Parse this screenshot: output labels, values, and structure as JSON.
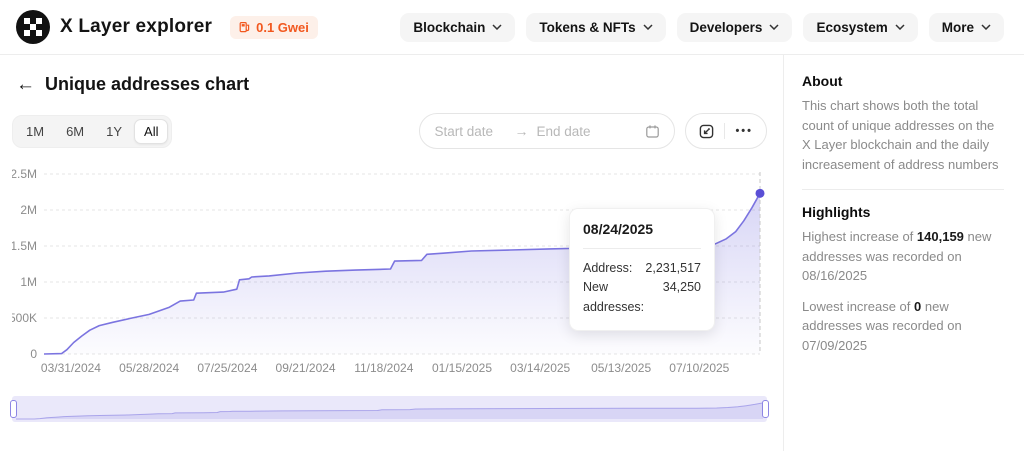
{
  "header": {
    "title": "X Layer explorer",
    "gas_badge": {
      "label": "0.1 Gwei"
    },
    "nav": {
      "items": [
        {
          "label": "Blockchain"
        },
        {
          "label": "Tokens & NFTs"
        },
        {
          "label": "Developers"
        },
        {
          "label": "Ecosystem"
        },
        {
          "label": "More"
        }
      ]
    }
  },
  "page": {
    "back_arrow": "←",
    "title": "Unique addresses chart"
  },
  "controls": {
    "ranges": [
      {
        "label": "1M"
      },
      {
        "label": "6M"
      },
      {
        "label": "1Y"
      },
      {
        "label": "All"
      }
    ],
    "date_range": {
      "start_placeholder": "Start date",
      "arrow": "→",
      "end_placeholder": "End date"
    },
    "more_label": "•••"
  },
  "tooltip": {
    "date": "08/24/2025",
    "rows": [
      {
        "label": "Address:",
        "value": "2,231,517"
      },
      {
        "label": "New addresses:",
        "value": "34,250"
      }
    ]
  },
  "chart_data": {
    "type": "area",
    "title": "Unique addresses chart",
    "xlabel": "",
    "ylabel": "",
    "grid": "dashed-horizontal",
    "legend": false,
    "x_domain": [
      "2024-03-11",
      "2025-08-24"
    ],
    "y_domain": [
      0,
      2500000
    ],
    "y_ticks": [
      {
        "value": 0,
        "label": "0"
      },
      {
        "value": 500000,
        "label": "500K"
      },
      {
        "value": 1000000,
        "label": "1M"
      },
      {
        "value": 1500000,
        "label": "1.5M"
      },
      {
        "value": 2000000,
        "label": "2M"
      },
      {
        "value": 2500000,
        "label": "2.5M"
      }
    ],
    "x_ticks": [
      {
        "date": "2024-03-31",
        "label": "03/31/2024"
      },
      {
        "date": "2024-05-28",
        "label": "05/28/2024"
      },
      {
        "date": "2024-07-25",
        "label": "07/25/2024"
      },
      {
        "date": "2024-09-21",
        "label": "09/21/2024"
      },
      {
        "date": "2024-11-18",
        "label": "11/18/2024"
      },
      {
        "date": "2025-01-15",
        "label": "01/15/2025"
      },
      {
        "date": "2025-03-14",
        "label": "03/14/2025"
      },
      {
        "date": "2025-05-13",
        "label": "05/13/2025"
      },
      {
        "date": "2025-07-10",
        "label": "07/10/2025"
      }
    ],
    "series": [
      {
        "name": "Address",
        "points": [
          [
            "2024-03-11",
            0
          ],
          [
            "2024-03-24",
            5000
          ],
          [
            "2024-03-28",
            60000
          ],
          [
            "2024-04-02",
            160000
          ],
          [
            "2024-04-08",
            250000
          ],
          [
            "2024-04-14",
            330000
          ],
          [
            "2024-04-21",
            395000
          ],
          [
            "2024-05-01",
            440000
          ],
          [
            "2024-05-14",
            495000
          ],
          [
            "2024-05-28",
            550000
          ],
          [
            "2024-06-12",
            650000
          ],
          [
            "2024-06-20",
            735000
          ],
          [
            "2024-06-30",
            750000
          ],
          [
            "2024-07-02",
            845000
          ],
          [
            "2024-07-22",
            860000
          ],
          [
            "2024-08-01",
            900000
          ],
          [
            "2024-08-03",
            1030000
          ],
          [
            "2024-08-10",
            1045000
          ],
          [
            "2024-08-12",
            1070000
          ],
          [
            "2024-08-25",
            1085000
          ],
          [
            "2024-09-15",
            1125000
          ],
          [
            "2024-10-06",
            1150000
          ],
          [
            "2024-10-28",
            1165000
          ],
          [
            "2024-11-23",
            1180000
          ],
          [
            "2024-11-26",
            1290000
          ],
          [
            "2024-12-16",
            1300000
          ],
          [
            "2024-12-20",
            1385000
          ],
          [
            "2025-01-01",
            1400000
          ],
          [
            "2025-01-22",
            1430000
          ],
          [
            "2025-02-20",
            1445000
          ],
          [
            "2025-03-21",
            1460000
          ],
          [
            "2025-04-19",
            1472000
          ],
          [
            "2025-05-18",
            1486000
          ],
          [
            "2025-06-16",
            1498000
          ],
          [
            "2025-07-08",
            1505000
          ],
          [
            "2025-07-22",
            1530000
          ],
          [
            "2025-07-30",
            1600000
          ],
          [
            "2025-08-06",
            1700000
          ],
          [
            "2025-08-12",
            1850000
          ],
          [
            "2025-08-18",
            2030000
          ],
          [
            "2025-08-24",
            2231517
          ]
        ]
      }
    ],
    "hover_point": {
      "date": "2025-08-24",
      "value": 2231517,
      "new_addresses": 34250
    }
  },
  "sidebar": {
    "about": {
      "title": "About",
      "body": "This chart shows both the total count of unique addresses on the X Layer blockchain and the daily increasement of address numbers"
    },
    "highlights": {
      "title": "Highlights",
      "items": [
        {
          "prefix": "Highest increase of ",
          "value": "140,159",
          "suffix": " new addresses was recorded on 08/16/2025"
        },
        {
          "prefix": "Lowest increase of ",
          "value": "0",
          "suffix": " new addresses was recorded on 07/09/2025"
        }
      ]
    }
  },
  "colors": {
    "accent": "#7b74e0",
    "dot": "#5a4fd6",
    "grid": "#e4e4e4",
    "axis_text": "#8c8c8c",
    "orange": "#f2581f",
    "brush_bg": "#eae8fa"
  }
}
